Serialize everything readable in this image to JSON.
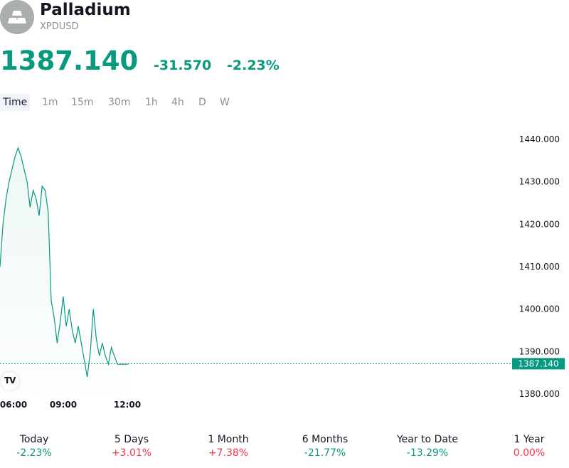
{
  "instrument": {
    "name": "Palladium",
    "ticker": "XPDUSD",
    "logo_icon": "gold-bars-icon"
  },
  "quote": {
    "price": "1387.140",
    "change": "-31.570",
    "change_percent": "-2.23%",
    "color": "#089981"
  },
  "tabs": [
    "Time",
    "1m",
    "15m",
    "30m",
    "1h",
    "4h",
    "D",
    "W"
  ],
  "active_tab": "Time",
  "chart_data": {
    "type": "area",
    "color": "#089981",
    "x": [
      "05:00",
      "05:10",
      "05:20",
      "05:30",
      "05:40",
      "05:50",
      "06:00",
      "06:10",
      "06:20",
      "06:30",
      "06:40",
      "06:50",
      "07:00",
      "07:10",
      "07:20",
      "07:30",
      "07:40",
      "07:50",
      "08:00",
      "08:10",
      "08:20",
      "08:30",
      "08:40",
      "08:50",
      "09:00",
      "09:10",
      "09:20",
      "09:30",
      "09:40",
      "09:50",
      "10:00",
      "10:10",
      "10:20",
      "10:30",
      "10:40",
      "10:50",
      "11:00",
      "11:10",
      "11:20",
      "11:30",
      "11:40",
      "11:50",
      "12:00",
      "12:10"
    ],
    "y": [
      1410,
      1420,
      1426,
      1430,
      1433,
      1436,
      1438,
      1436,
      1433,
      1430,
      1424,
      1428,
      1426,
      1422,
      1429,
      1428,
      1423,
      1402,
      1398,
      1392,
      1397,
      1403,
      1396,
      1400,
      1395,
      1392,
      1396,
      1392,
      1388,
      1384,
      1390,
      1400,
      1393,
      1389,
      1392,
      1389,
      1387,
      1391,
      1389,
      1387,
      1387,
      1387,
      1387,
      1387.14
    ],
    "x_ticks": [
      "06:00",
      "09:00",
      "12:00"
    ],
    "y_ticks": [
      "1440.000",
      "1430.000",
      "1420.000",
      "1410.000",
      "1400.000",
      "1390.000",
      "1380.000"
    ],
    "ylim": [
      1380,
      1440
    ],
    "last_price_label": "1387.140"
  },
  "performance": [
    {
      "label": "Today",
      "value": "-2.23%",
      "trend": "neg"
    },
    {
      "label": "5 Days",
      "value": "+3.01%",
      "trend": "pos"
    },
    {
      "label": "1 Month",
      "value": "+7.38%",
      "trend": "pos"
    },
    {
      "label": "6 Months",
      "value": "-21.77%",
      "trend": "neg"
    },
    {
      "label": "Year to Date",
      "value": "-13.29%",
      "trend": "neg"
    },
    {
      "label": "1 Year",
      "value": "0.00%",
      "trend": "zero"
    }
  ]
}
